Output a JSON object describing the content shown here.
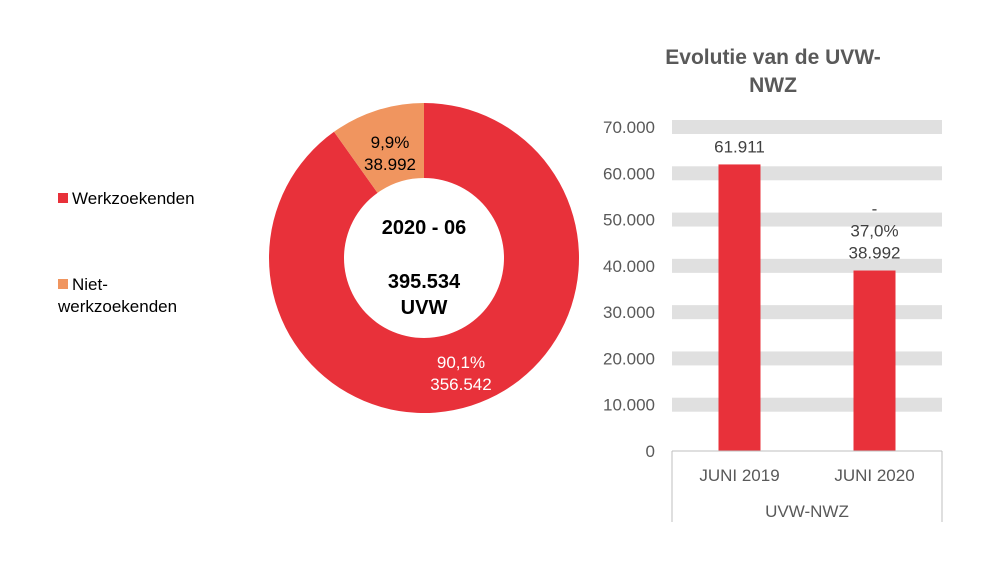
{
  "chart_data": [
    {
      "type": "pie",
      "variant": "donut",
      "center_text": {
        "line1": "2020 - 06",
        "line2": "395.534",
        "line3": "UVW"
      },
      "legend": {
        "placement": "left"
      },
      "slices": [
        {
          "name": "Werkzoekenden",
          "value": 356542,
          "percent_label": "90,1%",
          "value_label": "356.542",
          "color": "#E8313A"
        },
        {
          "name": "Niet-werkzoekenden",
          "legend_lines": [
            "Niet-",
            "werkzoekenden"
          ],
          "value": 38992,
          "percent_label": "9,9%",
          "value_label": "38.992",
          "color": "#F0955F"
        }
      ]
    },
    {
      "type": "bar",
      "title_lines": [
        "Evolutie van de UVW-",
        "NWZ"
      ],
      "categories": [
        "JUNI 2019",
        "JUNI 2020"
      ],
      "group_label": "UVW-NWZ",
      "values": [
        61911,
        38992
      ],
      "data_labels": [
        [
          "61.911"
        ],
        [
          "-",
          "37,0%",
          "38.992"
        ]
      ],
      "ylim": [
        0,
        70000
      ],
      "yticks": [
        0,
        10000,
        20000,
        30000,
        40000,
        50000,
        60000,
        70000
      ],
      "ytick_labels": [
        "0",
        "10.000",
        "20.000",
        "30.000",
        "40.000",
        "50.000",
        "60.000",
        "70.000"
      ],
      "grid": true,
      "bar_color": "#E8313A",
      "grid_color": "#E0E0E0"
    }
  ]
}
